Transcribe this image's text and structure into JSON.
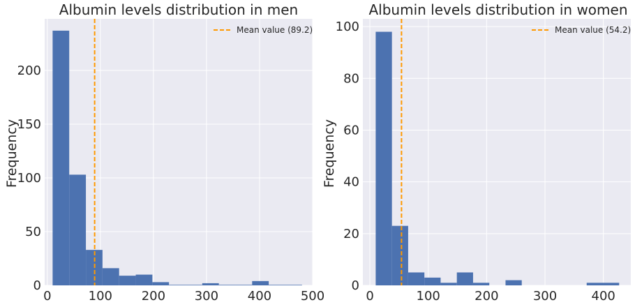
{
  "chart_data": [
    {
      "type": "bar",
      "title": "Albumin levels distribution in men",
      "xlabel": "",
      "ylabel": "Frequency",
      "xlim": [
        -5,
        500
      ],
      "ylim": [
        0,
        248
      ],
      "xticks": [
        0,
        100,
        200,
        300,
        400,
        500
      ],
      "yticks": [
        0,
        50,
        100,
        150,
        200
      ],
      "bin_edges": [
        10,
        41.3,
        72.7,
        104,
        135.3,
        166.7,
        198,
        229.3,
        260.7,
        292,
        323.3,
        354.7,
        386,
        417.3,
        448.7,
        480
      ],
      "values": [
        237,
        103,
        33,
        16,
        9,
        10,
        3,
        0.5,
        0.5,
        2,
        0.5,
        0.5,
        4,
        0.5,
        0.5
      ],
      "mean_line": {
        "x": 89.2,
        "label": "Mean value (89.2)"
      },
      "grid": true,
      "legend_position": "top-right"
    },
    {
      "type": "bar",
      "title": "Albumin levels distribution in women",
      "xlabel": "",
      "ylabel": "Frequency",
      "xlim": [
        -12,
        447
      ],
      "ylim": [
        0,
        103
      ],
      "xticks": [
        0,
        100,
        200,
        300,
        400
      ],
      "yticks": [
        0,
        20,
        40,
        60,
        80,
        100
      ],
      "bin_edges": [
        10,
        37.8,
        65.6,
        93.4,
        121.2,
        149,
        176.8,
        204.6,
        232.4,
        260.2,
        288,
        315.8,
        343.6,
        371.4,
        399.2,
        427
      ],
      "values": [
        98,
        23,
        5,
        3,
        1,
        5,
        1,
        0,
        2,
        0,
        0,
        0,
        0,
        1,
        1
      ],
      "mean_line": {
        "x": 54.2,
        "label": "Mean value (54.2)"
      },
      "grid": true,
      "legend_position": "top-right"
    }
  ],
  "colors": {
    "background": "#eaeaf2",
    "grid": "#ffffff",
    "bars": "#4c72b0",
    "mean_line": "#ff9900",
    "text": "#262626"
  }
}
